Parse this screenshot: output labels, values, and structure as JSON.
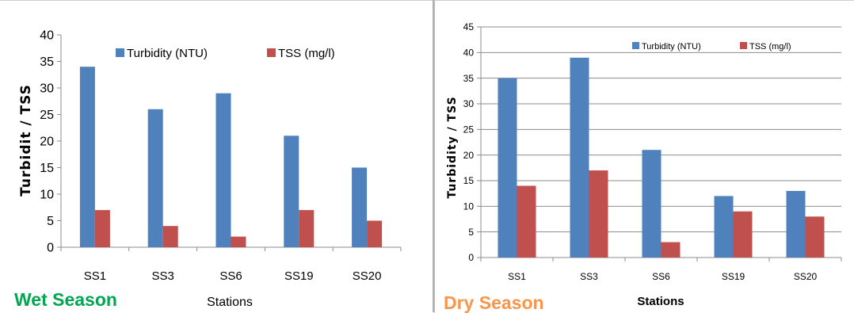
{
  "colors": {
    "turbidity": "#4F81BD",
    "tss": "#C0504D",
    "grid": "#8c8c8c",
    "wet_label": "#00A651",
    "dry_label": "#F7964A"
  },
  "chart_data": [
    {
      "type": "bar",
      "categories": [
        "SS1",
        "SS3",
        "SS6",
        "SS19",
        "SS20"
      ],
      "series": [
        {
          "name": "Turbidity (NTU)",
          "values": [
            34,
            26,
            29,
            21,
            15
          ]
        },
        {
          "name": "TSS (mg/l)",
          "values": [
            7,
            4,
            2,
            7,
            5
          ]
        }
      ],
      "title": "",
      "xlabel": "Stations",
      "ylabel": "Turbidit / TSS",
      "ylim": [
        0,
        40
      ],
      "yticks": [
        0,
        5,
        10,
        15,
        20,
        25,
        30,
        35,
        40
      ],
      "grid": false,
      "legend_position": "top",
      "caption": "Wet Season"
    },
    {
      "type": "bar",
      "categories": [
        "SS1",
        "SS3",
        "SS6",
        "SS19",
        "SS20"
      ],
      "series": [
        {
          "name": "Turbidity (NTU)",
          "values": [
            35,
            39,
            21,
            12,
            13
          ]
        },
        {
          "name": "TSS (mg/l)",
          "values": [
            14,
            17,
            3,
            9,
            8
          ]
        }
      ],
      "title": "",
      "xlabel": "Stations",
      "ylabel": "Turbidity / TSS",
      "ylim": [
        0,
        45
      ],
      "yticks": [
        0,
        5,
        10,
        15,
        20,
        25,
        30,
        35,
        40,
        45
      ],
      "grid": true,
      "legend_position": "top-right",
      "caption": "Dry Season"
    }
  ]
}
